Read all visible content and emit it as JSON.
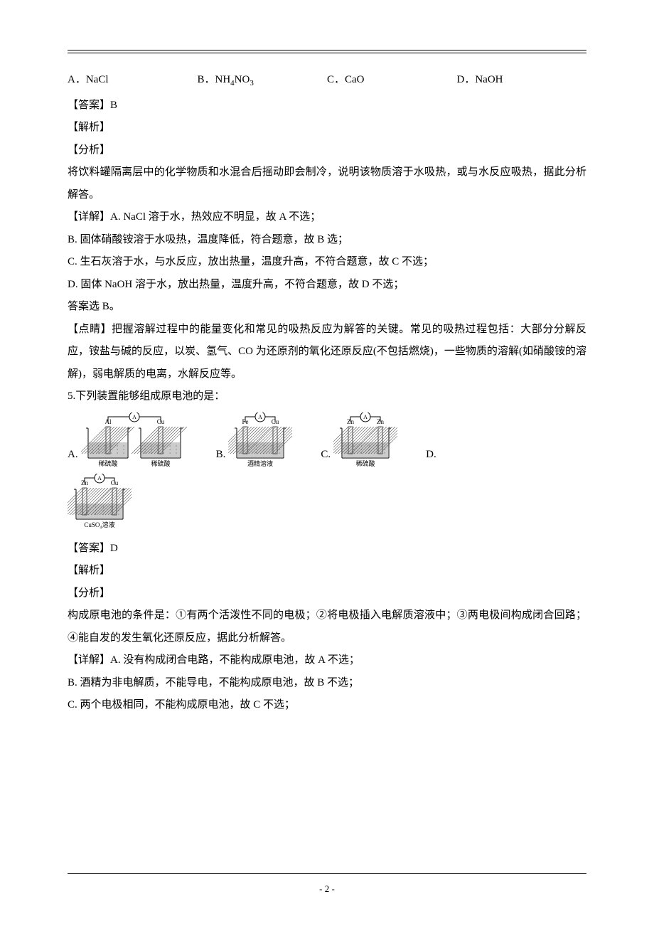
{
  "q4": {
    "options": {
      "A": "A．NaCl",
      "B": "B．NH₄NO₃",
      "C": "C．CaO",
      "D": "D．NaOH"
    },
    "answer_label": "【答案】B",
    "jiexi": "【解析】",
    "fenxi": "【分析】",
    "fenxi_text": "将饮料罐隔离层中的化学物质和水混合后摇动即会制冷，说明该物质溶于水吸热，或与水反应吸热，据此分析解答。",
    "detail_A": "【详解】A. NaCl 溶于水，热效应不明显，故 A 不选；",
    "detail_B": "B. 固体硝酸铵溶于水吸热，温度降低，符合题意，故 B 选；",
    "detail_C": "C. 生石灰溶于水，与水反应，放出热量，温度升高，不符合题意，故 C 不选；",
    "detail_D": "D. 固体 NaOH 溶于水，放出热量，温度升高，不符合题意，故 D 不选；",
    "answer_select": "答案选 B。",
    "dianjing": "【点睛】把握溶解过程中的能量变化和常见的吸热反应为解答的关键。常见的吸热过程包括：大部分分解反应，铵盐与碱的反应，以炭、氢气、CO 为还原剂的氧化还原反应(不包括燃烧)，一些物质的溶解(如硝酸铵的溶解)，弱电解质的电离，水解反应等。"
  },
  "q5": {
    "stem": "5.下列装置能够组成原电池的是：",
    "labels": {
      "A": "A.",
      "B": "B.",
      "C": "C.",
      "D": "D."
    },
    "answer_label": "【答案】D",
    "jiexi": "【解析】",
    "fenxi": "【分析】",
    "fenxi_text": "构成原电池的条件是：①有两个活泼性不同的电极；②将电极插入电解质溶液中；③两电极间构成闭合回路；④能自发的发生氧化还原反应，据此分析解答。",
    "detail_A": "【详解】A. 没有构成闭合电路，不能构成原电池，故 A 不选；",
    "detail_B": "B. 酒精为非电解质，不能导电，不能构成原电池，故 B 不选；",
    "detail_C": "C. 两个电极相同，不能构成原电池，故 C 不选；"
  },
  "diagrams": {
    "A": {
      "left_elec": "Al",
      "right_elec": "Cu",
      "sol_left": "稀硫酸",
      "sol_right": "稀硫酸",
      "two_beakers": true
    },
    "B": {
      "left_elec": "Fe",
      "right_elec": "Cu",
      "solution": "酒精溶液",
      "two_beakers": false
    },
    "C": {
      "left_elec": "Zn",
      "right_elec": "Zn",
      "solution": "稀硫酸",
      "two_beakers": false
    },
    "D": {
      "left_elec": "Zn",
      "right_elec": "Cu",
      "solution": "CuSO₄溶液",
      "two_beakers": false
    }
  },
  "footer": {
    "page": "- 2 -"
  },
  "style": {
    "line_color": "#000000",
    "hatch_color": "#555555",
    "liquid_color": "#cccccc",
    "diag_font": 9,
    "diag_width_single": 90,
    "diag_width_double": 150,
    "diag_height": 80
  }
}
